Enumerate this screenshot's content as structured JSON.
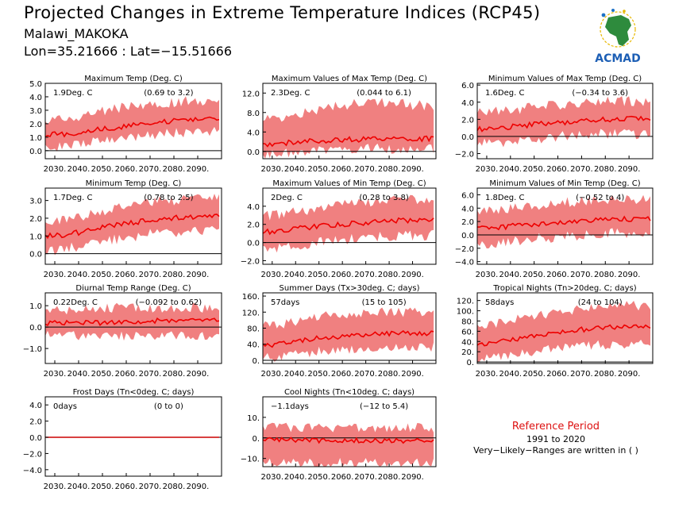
{
  "header": {
    "title": "Projected Changes in Extreme Temperature Indices (RCP45)",
    "location": "Malawi_MAKOKA",
    "coords": "Lon=35.21666 : Lat=−15.51666"
  },
  "logo": {
    "text": "ACMAD",
    "icon": "africa-map-logo"
  },
  "reference": {
    "title": "Reference Period",
    "years": "1991 to 2020",
    "note": "Very−Likely−Ranges are written in ( )"
  },
  "colors": {
    "band": "#f08080",
    "line": "#ee0000",
    "ref_title": "#dd1111"
  },
  "chart_data": [
    {
      "type": "area",
      "title": "Maximum Temp (Deg. C)",
      "summary": "1.9Deg. C",
      "range": "(0.69 to 3.2)",
      "x": [
        2030,
        2040,
        2050,
        2060,
        2070,
        2080,
        2090
      ],
      "xticks": [
        "2030.",
        "2040.",
        "2050.",
        "2060.",
        "2070.",
        "2080.",
        "2090."
      ],
      "ylim": [
        -0.6,
        5.0
      ],
      "yticks": [
        0.0,
        1.0,
        2.0,
        3.0,
        4.0,
        5.0
      ],
      "ytick_labels": [
        "0.0",
        "1.0",
        "2.0",
        "3.0",
        "4.0",
        "5.0"
      ],
      "series": [
        {
          "values": [
            1.2,
            1.3,
            1.6,
            1.8,
            2.1,
            2.2,
            2.3
          ]
        }
      ],
      "band_low": [
        0.3,
        0.5,
        0.7,
        0.9,
        1.1,
        1.3,
        1.4
      ],
      "band_high": [
        2.3,
        2.5,
        2.9,
        3.3,
        3.5,
        3.6,
        3.7
      ]
    },
    {
      "type": "area",
      "title": "Maximum Values of Max Temp (Deg. C)",
      "summary": "2.3Deg. C",
      "range": "(0.044 to 6.1)",
      "x": [
        2030,
        2040,
        2050,
        2060,
        2070,
        2080,
        2090
      ],
      "xticks": [
        "2030.",
        "2040.",
        "2050.",
        "2060.",
        "2070.",
        "2080.",
        "2090."
      ],
      "ylim": [
        -1.5,
        14.0
      ],
      "yticks": [
        0.0,
        4.0,
        8.0,
        12.0
      ],
      "ytick_labels": [
        "0.0",
        "4.0",
        "8.0",
        "12.0"
      ],
      "series": [
        {
          "values": [
            1.5,
            1.9,
            2.2,
            2.4,
            2.5,
            2.6,
            2.6
          ]
        }
      ],
      "band_low": [
        -0.5,
        -0.2,
        0.2,
        0.4,
        0.5,
        0.6,
        0.6
      ],
      "band_high": [
        6.5,
        7.5,
        8.5,
        9.5,
        10.0,
        10.0,
        9.5
      ]
    },
    {
      "type": "area",
      "title": "Minimum Values of Max Temp (Deg. C)",
      "summary": "1.6Deg. C",
      "range": "(−0.34 to 3.6)",
      "x": [
        2030,
        2040,
        2050,
        2060,
        2070,
        2080,
        2090
      ],
      "xticks": [
        "2030.",
        "2040.",
        "2050.",
        "2060.",
        "2070.",
        "2080.",
        "2090."
      ],
      "ylim": [
        -2.6,
        6.2
      ],
      "yticks": [
        -2.0,
        0.0,
        2.0,
        4.0,
        6.0
      ],
      "ytick_labels": [
        "−2.0",
        "0.0",
        "2.0",
        "4.0",
        "6.0"
      ],
      "series": [
        {
          "values": [
            0.9,
            1.1,
            1.4,
            1.6,
            1.8,
            2.0,
            2.1
          ]
        }
      ],
      "band_low": [
        -0.8,
        -0.6,
        -0.3,
        0.0,
        0.2,
        0.3,
        0.3
      ],
      "band_high": [
        2.8,
        3.0,
        3.4,
        3.7,
        4.0,
        4.1,
        4.1
      ]
    },
    {
      "type": "area",
      "title": "Minimum Temp (Deg. C)",
      "summary": "1.7Deg. C",
      "range": "(0.78 to 2.5)",
      "x": [
        2030,
        2040,
        2050,
        2060,
        2070,
        2080,
        2090
      ],
      "xticks": [
        "2030.",
        "2040.",
        "2050.",
        "2060.",
        "2070.",
        "2080.",
        "2090."
      ],
      "ylim": [
        -0.6,
        3.7
      ],
      "yticks": [
        0.0,
        1.0,
        2.0,
        3.0
      ],
      "ytick_labels": [
        "0.0",
        "1.0",
        "2.0",
        "3.0"
      ],
      "series": [
        {
          "values": [
            1.0,
            1.2,
            1.5,
            1.7,
            1.9,
            2.0,
            2.1
          ]
        }
      ],
      "band_low": [
        0.2,
        0.4,
        0.7,
        0.9,
        1.1,
        1.2,
        1.3
      ],
      "band_high": [
        1.8,
        2.1,
        2.4,
        2.7,
        2.9,
        3.0,
        3.1
      ]
    },
    {
      "type": "area",
      "title": "Maximum Values of Min Temp (Deg. C)",
      "summary": "2Deg. C",
      "range": "(0.28 to 3.8)",
      "x": [
        2030,
        2040,
        2050,
        2060,
        2070,
        2080,
        2090
      ],
      "xticks": [
        "2030.",
        "2040.",
        "2050.",
        "2060.",
        "2070.",
        "2080.",
        "2090."
      ],
      "ylim": [
        -2.4,
        6.0
      ],
      "yticks": [
        -2.0,
        0.0,
        2.0,
        4.0
      ],
      "ytick_labels": [
        "−2.0",
        "0.0",
        "2.0",
        "4.0"
      ],
      "series": [
        {
          "values": [
            1.2,
            1.5,
            1.8,
            2.0,
            2.2,
            2.4,
            2.5
          ]
        }
      ],
      "band_low": [
        -0.8,
        -0.4,
        0.0,
        0.3,
        0.5,
        0.7,
        0.8
      ],
      "band_high": [
        3.0,
        3.4,
        3.8,
        4.2,
        4.5,
        4.7,
        4.8
      ]
    },
    {
      "type": "area",
      "title": "Minimum Values of Min Temp (Deg. C)",
      "summary": "1.8Deg. C",
      "range": "(−0.52 to 4)",
      "x": [
        2030,
        2040,
        2050,
        2060,
        2070,
        2080,
        2090
      ],
      "xticks": [
        "2030.",
        "2040.",
        "2050.",
        "2060.",
        "2070.",
        "2080.",
        "2090."
      ],
      "ylim": [
        -4.4,
        7.0
      ],
      "yticks": [
        -4.0,
        -2.0,
        0.0,
        2.0,
        4.0,
        6.0
      ],
      "ytick_labels": [
        "−4.0",
        "−2.0",
        "0.0",
        "2.0",
        "4.0",
        "6.0"
      ],
      "series": [
        {
          "values": [
            1.0,
            1.3,
            1.6,
            1.8,
            2.0,
            2.2,
            2.4
          ]
        }
      ],
      "band_low": [
        -1.5,
        -1.0,
        -0.6,
        -0.3,
        0.0,
        0.2,
        0.3
      ],
      "band_high": [
        3.6,
        4.0,
        4.4,
        4.8,
        5.0,
        5.2,
        5.3
      ]
    },
    {
      "type": "area",
      "title": "Diurnal Temp Range (Deg. C)",
      "summary": "0.22Deg. C",
      "range": "(−0.092 to 0.62)",
      "x": [
        2030,
        2040,
        2050,
        2060,
        2070,
        2080,
        2090
      ],
      "xticks": [
        "2030.",
        "2040.",
        "2050.",
        "2060.",
        "2070.",
        "2080.",
        "2090."
      ],
      "ylim": [
        -1.7,
        1.6
      ],
      "yticks": [
        -1.0,
        0.0,
        1.0
      ],
      "ytick_labels": [
        "−1.0",
        "0.0",
        "1.0"
      ],
      "series": [
        {
          "values": [
            0.2,
            0.2,
            0.2,
            0.2,
            0.3,
            0.3,
            0.3
          ]
        }
      ],
      "band_low": [
        -0.4,
        -0.4,
        -0.4,
        -0.4,
        -0.4,
        -0.4,
        -0.4
      ],
      "band_high": [
        0.8,
        0.8,
        0.9,
        0.9,
        0.9,
        0.9,
        0.9
      ]
    },
    {
      "type": "area",
      "title": "Summer Days (Tx>30deg. C; days)",
      "summary": "57days",
      "range": "(15 to 105)",
      "x": [
        2030,
        2040,
        2050,
        2060,
        2070,
        2080,
        2090
      ],
      "xticks": [
        "2030.",
        "2040.",
        "2050.",
        "2060.",
        "2070.",
        "2080.",
        "2090."
      ],
      "ylim": [
        -8,
        168
      ],
      "yticks": [
        0,
        40,
        80,
        120,
        160
      ],
      "ytick_labels": [
        "0.",
        "40.",
        "80.",
        "120.",
        "160."
      ],
      "series": [
        {
          "values": [
            38,
            48,
            55,
            60,
            64,
            66,
            68
          ]
        }
      ],
      "band_low": [
        8,
        15,
        22,
        27,
        30,
        32,
        33
      ],
      "band_high": [
        85,
        98,
        108,
        114,
        118,
        120,
        120
      ]
    },
    {
      "type": "area",
      "title": "Tropical Nights (Tn>20deg. C; days)",
      "summary": "58days",
      "range": "(24 to 104)",
      "x": [
        2030,
        2040,
        2050,
        2060,
        2070,
        2080,
        2090
      ],
      "xticks": [
        "2030.",
        "2040.",
        "2050.",
        "2060.",
        "2070.",
        "2080.",
        "2090."
      ],
      "ylim": [
        -3,
        135
      ],
      "yticks": [
        0,
        20,
        40,
        60,
        80,
        100,
        120
      ],
      "ytick_labels": [
        "0.",
        "20.",
        "40.",
        "60.",
        "80.",
        "100.",
        "120."
      ],
      "series": [
        {
          "values": [
            35,
            42,
            50,
            57,
            63,
            67,
            70
          ]
        }
      ],
      "band_low": [
        8,
        14,
        20,
        26,
        31,
        34,
        36
      ],
      "band_high": [
        70,
        80,
        90,
        98,
        104,
        108,
        110
      ]
    },
    {
      "type": "area",
      "title": "Frost Days (Tn<0deg. C; days)",
      "summary": "0days",
      "range": "(0 to 0)",
      "x": [
        2030,
        2040,
        2050,
        2060,
        2070,
        2080,
        2090
      ],
      "xticks": [
        "2030.",
        "2040.",
        "2050.",
        "2060.",
        "2070.",
        "2080.",
        "2090."
      ],
      "ylim": [
        -4.8,
        5.0
      ],
      "yticks": [
        -4.0,
        -2.0,
        0.0,
        2.0,
        4.0
      ],
      "ytick_labels": [
        "−4.0",
        "−2.0",
        "0.0",
        "2.0",
        "4.0"
      ],
      "series": [
        {
          "values": [
            0,
            0,
            0,
            0,
            0,
            0,
            0
          ]
        }
      ],
      "band_low": [
        0,
        0,
        0,
        0,
        0,
        0,
        0
      ],
      "band_high": [
        0,
        0,
        0,
        0,
        0,
        0,
        0
      ]
    },
    {
      "type": "area",
      "title": "Cool Nights (Tn<10deg. C; days)",
      "summary": "−1.1days",
      "range": "(−12 to 5.4)",
      "x": [
        2030,
        2040,
        2050,
        2060,
        2070,
        2080,
        2090
      ],
      "xticks": [
        "2030.",
        "2040.",
        "2050.",
        "2060.",
        "2070.",
        "2080.",
        "2090."
      ],
      "ylim": [
        -14,
        20
      ],
      "yticks": [
        -10,
        0,
        10
      ],
      "ytick_labels": [
        "−10.",
        "0.",
        "10."
      ],
      "series": [
        {
          "values": [
            -0.5,
            -1.0,
            -1.2,
            -1.3,
            -1.4,
            -1.5,
            -1.5
          ]
        }
      ],
      "band_low": [
        -12,
        -12,
        -12,
        -12,
        -12,
        -12,
        -12
      ],
      "band_high": [
        5,
        5,
        5,
        5,
        5,
        5,
        5
      ]
    }
  ]
}
